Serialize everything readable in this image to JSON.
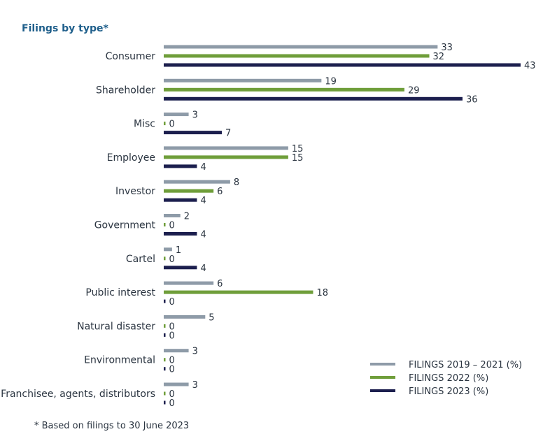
{
  "chart_data": {
    "type": "bar",
    "orientation": "horizontal",
    "title": "Filings by type*",
    "categories": [
      "Consumer",
      "Shareholder",
      "Misc",
      "Employee",
      "Investor",
      "Government",
      "Cartel",
      "Public interest",
      "Natural disaster",
      "Environmental",
      "Franchisee, agents, distributors"
    ],
    "series": [
      {
        "name": "FILINGS 2019 – 2021 (%)",
        "color": "#8e9ba8",
        "values": [
          33,
          19,
          3,
          15,
          8,
          2,
          1,
          6,
          5,
          3,
          3
        ]
      },
      {
        "name": "FILINGS 2022 (%)",
        "color": "#6f9e3a",
        "values": [
          32,
          29,
          0,
          15,
          6,
          0,
          0,
          18,
          0,
          0,
          0
        ]
      },
      {
        "name": "FILINGS 2023 (%)",
        "color": "#1c1f4e",
        "values": [
          43,
          36,
          7,
          4,
          4,
          4,
          4,
          0,
          0,
          0,
          0
        ]
      }
    ],
    "legend_position": "bottom-right",
    "grid": false
  },
  "footnote": "* Based on filings to 30 June 2023"
}
